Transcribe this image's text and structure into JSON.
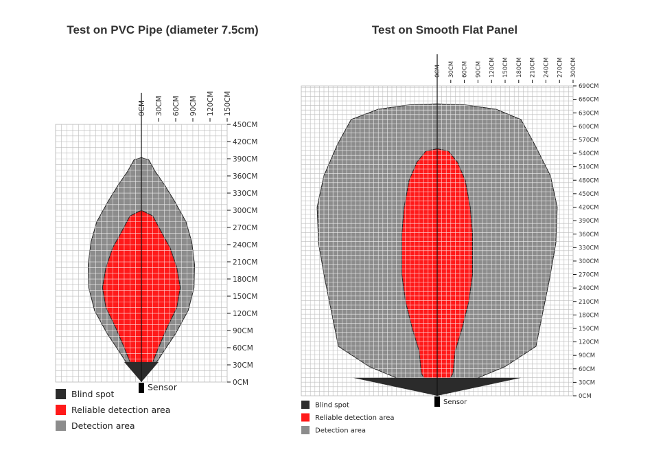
{
  "colors": {
    "blind": "#2b2b2b",
    "reliable": "#ff1a1a",
    "detection": "#8c8c8c",
    "grid": "#bdbdbd",
    "axis": "#111111"
  },
  "chart_data": [
    {
      "type": "area",
      "title": "Test on PVC Pipe (diameter  7.5cm)",
      "x_ticks": [
        0,
        30,
        60,
        90,
        120,
        150
      ],
      "x_tick_labels": [
        "0CM",
        "30CM",
        "60CM",
        "90CM",
        "120CM",
        "150CM"
      ],
      "y_ticks": [
        0,
        30,
        60,
        90,
        120,
        150,
        180,
        210,
        240,
        270,
        300,
        330,
        360,
        390,
        420,
        450
      ],
      "y_tick_labels": [
        "0CM",
        "30CM",
        "60CM",
        "90CM",
        "120CM",
        "150CM",
        "180CM",
        "210CM",
        "240CM",
        "270CM",
        "300CM",
        "330CM",
        "360CM",
        "390CM",
        "420CM",
        "450CM"
      ],
      "xlim": [
        -150,
        150
      ],
      "ylim": [
        0,
        450
      ],
      "grid": true,
      "sensor_label": "Sensor",
      "legend": [
        {
          "key": "blind",
          "label": "Blind spot"
        },
        {
          "key": "reliable",
          "label": "Reliable detection area"
        },
        {
          "key": "detection",
          "label": "Detection area"
        }
      ],
      "blind_spot": {
        "half_width": 30,
        "top": 35,
        "apex": 0
      },
      "reliable_area": [
        [
          0,
          300
        ],
        [
          20,
          290
        ],
        [
          35,
          262
        ],
        [
          50,
          235
        ],
        [
          62,
          200
        ],
        [
          68,
          165
        ],
        [
          62,
          130
        ],
        [
          45,
          95
        ],
        [
          30,
          60
        ],
        [
          20,
          35
        ],
        [
          0,
          30
        ],
        [
          -20,
          35
        ],
        [
          -30,
          60
        ],
        [
          -45,
          95
        ],
        [
          -62,
          130
        ],
        [
          -68,
          165
        ],
        [
          -62,
          200
        ],
        [
          -50,
          235
        ],
        [
          -35,
          262
        ],
        [
          -20,
          290
        ]
      ],
      "detection_area": [
        [
          0,
          392
        ],
        [
          13,
          388
        ],
        [
          24,
          368
        ],
        [
          40,
          345
        ],
        [
          58,
          316
        ],
        [
          78,
          280
        ],
        [
          88,
          245
        ],
        [
          93,
          205
        ],
        [
          92,
          165
        ],
        [
          82,
          125
        ],
        [
          60,
          85
        ],
        [
          40,
          55
        ],
        [
          25,
          32
        ],
        [
          0,
          25
        ],
        [
          -25,
          32
        ],
        [
          -40,
          55
        ],
        [
          -60,
          85
        ],
        [
          -82,
          125
        ],
        [
          -92,
          165
        ],
        [
          -93,
          205
        ],
        [
          -88,
          245
        ],
        [
          -78,
          280
        ],
        [
          -58,
          316
        ],
        [
          -40,
          345
        ],
        [
          -24,
          368
        ],
        [
          -13,
          388
        ]
      ]
    },
    {
      "type": "area",
      "title": "Test on Smooth Flat Panel",
      "x_ticks": [
        0,
        30,
        60,
        90,
        120,
        150,
        180,
        210,
        240,
        270,
        300
      ],
      "x_tick_labels": [
        "0CM",
        "30CM",
        "60CM",
        "90CM",
        "120CM",
        "150CM",
        "180CM",
        "210CM",
        "240CM",
        "270CM",
        "300CM"
      ],
      "y_ticks": [
        0,
        30,
        60,
        90,
        120,
        150,
        180,
        210,
        240,
        270,
        300,
        330,
        360,
        390,
        420,
        450,
        480,
        510,
        540,
        570,
        600,
        630,
        660,
        690
      ],
      "y_tick_labels": [
        "0CM",
        "30CM",
        "60CM",
        "90CM",
        "120CM",
        "150CM",
        "180CM",
        "210CM",
        "240CM",
        "270CM",
        "300CM",
        "330CM",
        "360CM",
        "390CM",
        "420CM",
        "450CM",
        "480CM",
        "510CM",
        "540CM",
        "570CM",
        "600CM",
        "630CM",
        "660CM",
        "690CM"
      ],
      "xlim": [
        -300,
        300
      ],
      "ylim": [
        0,
        690
      ],
      "grid": true,
      "sensor_label": "Sensor",
      "legend": [
        {
          "key": "blind",
          "label": "Blind spot"
        },
        {
          "key": "reliable",
          "label": "Reliable detection area"
        },
        {
          "key": "detection",
          "label": "Detection area"
        }
      ],
      "blind_spot": {
        "half_width": 185,
        "top": 40,
        "apex": 0
      },
      "reliable_area": [
        [
          0,
          550
        ],
        [
          25,
          545
        ],
        [
          45,
          520
        ],
        [
          62,
          480
        ],
        [
          73,
          420
        ],
        [
          78,
          360
        ],
        [
          78,
          270
        ],
        [
          70,
          210
        ],
        [
          55,
          150
        ],
        [
          40,
          100
        ],
        [
          35,
          50
        ],
        [
          28,
          38
        ],
        [
          0,
          38
        ],
        [
          -28,
          38
        ],
        [
          -35,
          50
        ],
        [
          -40,
          100
        ],
        [
          -55,
          150
        ],
        [
          -70,
          210
        ],
        [
          -78,
          270
        ],
        [
          -78,
          360
        ],
        [
          -73,
          420
        ],
        [
          -62,
          480
        ],
        [
          -45,
          520
        ],
        [
          -25,
          545
        ]
      ],
      "detection_area": [
        [
          0,
          650
        ],
        [
          60,
          648
        ],
        [
          130,
          638
        ],
        [
          185,
          615
        ],
        [
          215,
          560
        ],
        [
          250,
          490
        ],
        [
          265,
          420
        ],
        [
          262,
          340
        ],
        [
          248,
          260
        ],
        [
          232,
          180
        ],
        [
          218,
          110
        ],
        [
          150,
          65
        ],
        [
          90,
          40
        ],
        [
          0,
          38
        ],
        [
          -90,
          40
        ],
        [
          -150,
          65
        ],
        [
          -218,
          110
        ],
        [
          -232,
          180
        ],
        [
          -248,
          260
        ],
        [
          -262,
          340
        ],
        [
          -265,
          420
        ],
        [
          -250,
          490
        ],
        [
          -220,
          560
        ],
        [
          -190,
          615
        ],
        [
          -130,
          638
        ],
        [
          -60,
          648
        ]
      ]
    }
  ]
}
